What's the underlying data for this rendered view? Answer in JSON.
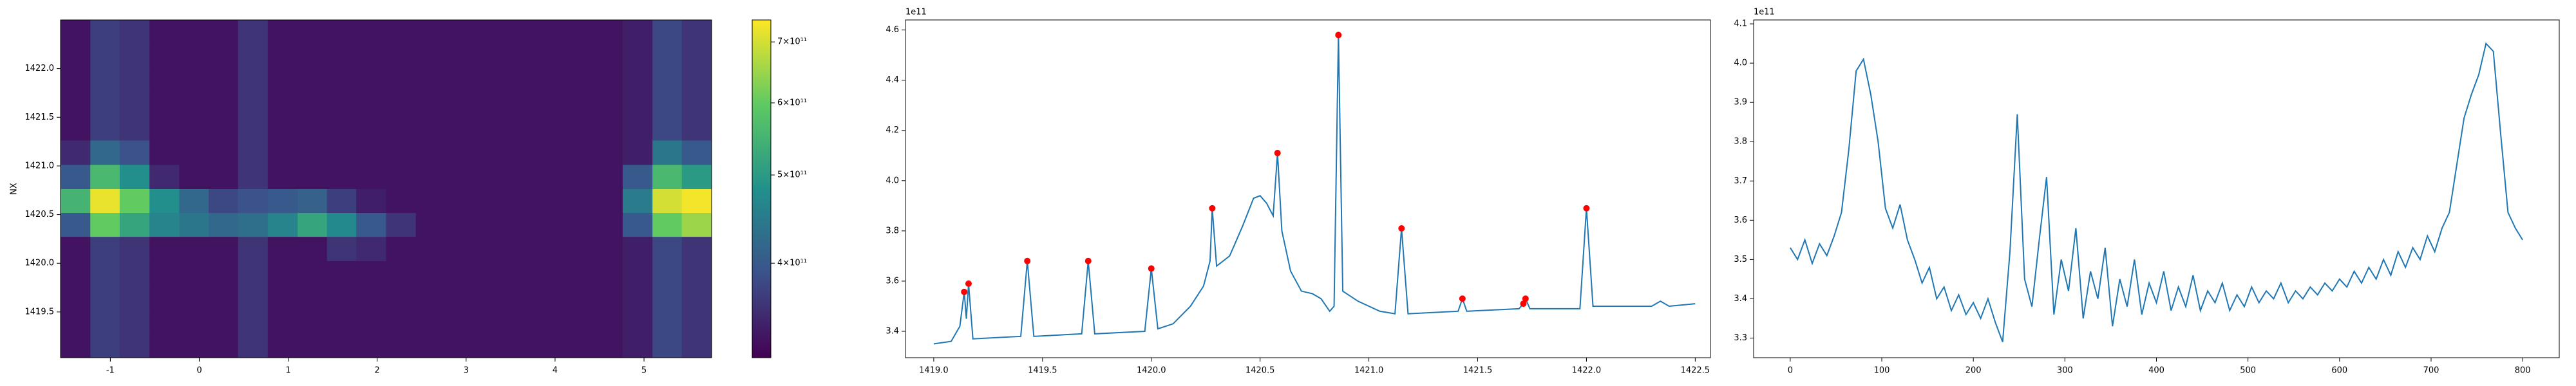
{
  "chart_data": [
    {
      "type": "heatmap",
      "ylabel": "NX",
      "colormap": "viridis",
      "color_scale": "log",
      "x": [
        -1.39,
        -1.06,
        -0.73,
        -0.39,
        -0.06,
        0.27,
        0.6,
        0.94,
        1.27,
        1.6,
        1.93,
        2.27,
        2.6,
        2.93,
        3.26,
        3.6,
        3.93,
        4.26,
        4.59,
        4.93,
        5.26,
        5.59
      ],
      "y": [
        1419.15,
        1419.4,
        1419.65,
        1419.9,
        1420.15,
        1420.4,
        1420.64,
        1420.89,
        1421.14,
        1421.39,
        1421.64,
        1421.89,
        1422.13,
        1422.38
      ],
      "values": [
        [
          330000000000.0,
          370000000000.0,
          360000000000.0,
          330000000000.0,
          330000000000.0,
          330000000000.0,
          360000000000.0,
          330000000000.0,
          330000000000.0,
          330000000000.0,
          330000000000.0,
          330000000000.0,
          330000000000.0,
          330000000000.0,
          330000000000.0,
          330000000000.0,
          330000000000.0,
          330000000000.0,
          330000000000.0,
          340000000000.0,
          380000000000.0,
          360000000000.0
        ],
        [
          330000000000.0,
          370000000000.0,
          360000000000.0,
          330000000000.0,
          330000000000.0,
          330000000000.0,
          360000000000.0,
          330000000000.0,
          330000000000.0,
          330000000000.0,
          330000000000.0,
          330000000000.0,
          330000000000.0,
          330000000000.0,
          330000000000.0,
          330000000000.0,
          330000000000.0,
          330000000000.0,
          330000000000.0,
          340000000000.0,
          380000000000.0,
          360000000000.0
        ],
        [
          330000000000.0,
          370000000000.0,
          360000000000.0,
          330000000000.0,
          330000000000.0,
          330000000000.0,
          360000000000.0,
          330000000000.0,
          330000000000.0,
          330000000000.0,
          330000000000.0,
          330000000000.0,
          330000000000.0,
          330000000000.0,
          330000000000.0,
          330000000000.0,
          330000000000.0,
          330000000000.0,
          330000000000.0,
          340000000000.0,
          380000000000.0,
          360000000000.0
        ],
        [
          330000000000.0,
          370000000000.0,
          360000000000.0,
          330000000000.0,
          330000000000.0,
          330000000000.0,
          360000000000.0,
          330000000000.0,
          330000000000.0,
          330000000000.0,
          330000000000.0,
          330000000000.0,
          330000000000.0,
          330000000000.0,
          330000000000.0,
          330000000000.0,
          330000000000.0,
          330000000000.0,
          330000000000.0,
          340000000000.0,
          380000000000.0,
          360000000000.0
        ],
        [
          330000000000.0,
          370000000000.0,
          360000000000.0,
          330000000000.0,
          330000000000.0,
          330000000000.0,
          360000000000.0,
          330000000000.0,
          330000000000.0,
          360000000000.0,
          350000000000.0,
          330000000000.0,
          330000000000.0,
          330000000000.0,
          330000000000.0,
          330000000000.0,
          330000000000.0,
          330000000000.0,
          330000000000.0,
          340000000000.0,
          380000000000.0,
          360000000000.0
        ],
        [
          400000000000.0,
          600000000000.0,
          520000000000.0,
          460000000000.0,
          440000000000.0,
          420000000000.0,
          430000000000.0,
          460000000000.0,
          520000000000.0,
          470000000000.0,
          400000000000.0,
          360000000000.0,
          330000000000.0,
          330000000000.0,
          330000000000.0,
          330000000000.0,
          330000000000.0,
          330000000000.0,
          330000000000.0,
          400000000000.0,
          600000000000.0,
          650000000000.0
        ],
        [
          550000000000.0,
          720000000000.0,
          600000000000.0,
          480000000000.0,
          420000000000.0,
          380000000000.0,
          390000000000.0,
          400000000000.0,
          410000000000.0,
          370000000000.0,
          340000000000.0,
          330000000000.0,
          330000000000.0,
          330000000000.0,
          330000000000.0,
          330000000000.0,
          330000000000.0,
          330000000000.0,
          330000000000.0,
          450000000000.0,
          700000000000.0,
          730000000000.0
        ],
        [
          400000000000.0,
          560000000000.0,
          480000000000.0,
          350000000000.0,
          330000000000.0,
          330000000000.0,
          360000000000.0,
          330000000000.0,
          330000000000.0,
          330000000000.0,
          330000000000.0,
          330000000000.0,
          330000000000.0,
          330000000000.0,
          330000000000.0,
          330000000000.0,
          330000000000.0,
          330000000000.0,
          330000000000.0,
          400000000000.0,
          560000000000.0,
          500000000000.0
        ],
        [
          350000000000.0,
          420000000000.0,
          390000000000.0,
          330000000000.0,
          330000000000.0,
          330000000000.0,
          360000000000.0,
          330000000000.0,
          330000000000.0,
          330000000000.0,
          330000000000.0,
          330000000000.0,
          330000000000.0,
          330000000000.0,
          330000000000.0,
          330000000000.0,
          330000000000.0,
          330000000000.0,
          330000000000.0,
          340000000000.0,
          440000000000.0,
          400000000000.0
        ],
        [
          330000000000.0,
          370000000000.0,
          360000000000.0,
          330000000000.0,
          330000000000.0,
          330000000000.0,
          360000000000.0,
          330000000000.0,
          330000000000.0,
          330000000000.0,
          330000000000.0,
          330000000000.0,
          330000000000.0,
          330000000000.0,
          330000000000.0,
          330000000000.0,
          330000000000.0,
          330000000000.0,
          330000000000.0,
          340000000000.0,
          380000000000.0,
          360000000000.0
        ],
        [
          330000000000.0,
          370000000000.0,
          360000000000.0,
          330000000000.0,
          330000000000.0,
          330000000000.0,
          360000000000.0,
          330000000000.0,
          330000000000.0,
          330000000000.0,
          330000000000.0,
          330000000000.0,
          330000000000.0,
          330000000000.0,
          330000000000.0,
          330000000000.0,
          330000000000.0,
          330000000000.0,
          330000000000.0,
          340000000000.0,
          380000000000.0,
          360000000000.0
        ],
        [
          330000000000.0,
          370000000000.0,
          360000000000.0,
          330000000000.0,
          330000000000.0,
          330000000000.0,
          360000000000.0,
          330000000000.0,
          330000000000.0,
          330000000000.0,
          330000000000.0,
          330000000000.0,
          330000000000.0,
          330000000000.0,
          330000000000.0,
          330000000000.0,
          330000000000.0,
          330000000000.0,
          330000000000.0,
          340000000000.0,
          380000000000.0,
          360000000000.0
        ],
        [
          330000000000.0,
          370000000000.0,
          360000000000.0,
          330000000000.0,
          330000000000.0,
          330000000000.0,
          360000000000.0,
          330000000000.0,
          330000000000.0,
          330000000000.0,
          330000000000.0,
          330000000000.0,
          330000000000.0,
          330000000000.0,
          330000000000.0,
          330000000000.0,
          330000000000.0,
          330000000000.0,
          330000000000.0,
          340000000000.0,
          380000000000.0,
          360000000000.0
        ],
        [
          330000000000.0,
          370000000000.0,
          360000000000.0,
          330000000000.0,
          330000000000.0,
          330000000000.0,
          360000000000.0,
          330000000000.0,
          330000000000.0,
          330000000000.0,
          330000000000.0,
          330000000000.0,
          330000000000.0,
          330000000000.0,
          330000000000.0,
          330000000000.0,
          330000000000.0,
          330000000000.0,
          330000000000.0,
          340000000000.0,
          380000000000.0,
          360000000000.0
        ]
      ],
      "clim": [
        315000000000.0,
        740000000000.0
      ],
      "colorbar_ticks": [
        {
          "value": 400000000000.0,
          "label": "4×10¹¹"
        },
        {
          "value": 500000000000.0,
          "label": "5×10¹¹"
        },
        {
          "value": 600000000000.0,
          "label": "6×10¹¹"
        },
        {
          "value": 700000000000.0,
          "label": "7×10¹¹"
        }
      ],
      "xlim": [
        -1.56,
        5.76
      ],
      "xticks": [
        -1,
        0,
        1,
        2,
        3,
        4,
        5
      ],
      "ylim": [
        1419.03,
        1422.5
      ],
      "yticks": [
        1419.5,
        {
          "value": 1420,
          "label": "1420.0"
        },
        1420.5,
        {
          "value": 1421,
          "label": "1421.0"
        },
        1421.5,
        {
          "value": 1422,
          "label": "1422.0"
        }
      ]
    },
    {
      "type": "line",
      "offset_label": "1e11",
      "series": [
        {
          "color": "#1f77b4",
          "x": [
            1419.0,
            1419.08,
            1419.12,
            1419.14,
            1419.15,
            1419.16,
            1419.18,
            1419.4,
            1419.43,
            1419.46,
            1419.68,
            1419.71,
            1419.74,
            1419.97,
            1420.0,
            1420.03,
            1420.1,
            1420.18,
            1420.24,
            1420.27,
            1420.28,
            1420.3,
            1420.36,
            1420.42,
            1420.47,
            1420.5,
            1420.53,
            1420.56,
            1420.58,
            1420.6,
            1420.64,
            1420.69,
            1420.74,
            1420.78,
            1420.82,
            1420.84,
            1420.86,
            1420.88,
            1420.95,
            1421.05,
            1421.12,
            1421.15,
            1421.18,
            1421.41,
            1421.43,
            1421.45,
            1421.69,
            1421.71,
            1421.72,
            1421.74,
            1421.97,
            1422.0,
            1422.03,
            1422.3,
            1422.34,
            1422.38,
            1422.5
          ],
          "values": [
            3.35,
            3.36,
            3.42,
            3.557,
            3.45,
            3.59,
            3.37,
            3.38,
            3.68,
            3.38,
            3.39,
            3.68,
            3.39,
            3.4,
            3.65,
            3.41,
            3.43,
            3.5,
            3.58,
            3.68,
            3.89,
            3.66,
            3.7,
            3.82,
            3.93,
            3.94,
            3.91,
            3.86,
            4.11,
            3.8,
            3.64,
            3.56,
            3.55,
            3.53,
            3.48,
            3.5,
            4.58,
            3.56,
            3.52,
            3.48,
            3.47,
            3.81,
            3.47,
            3.48,
            3.53,
            3.48,
            3.49,
            3.51,
            3.53,
            3.49,
            3.49,
            3.89,
            3.5,
            3.5,
            3.52,
            3.5,
            3.51
          ]
        }
      ],
      "markers": {
        "color": "#ff0000",
        "x": [
          1419.14,
          1419.16,
          1419.43,
          1419.71,
          1420.0,
          1420.28,
          1420.58,
          1420.86,
          1421.15,
          1421.43,
          1421.71,
          1421.72,
          1422.0
        ],
        "values": [
          3.557,
          3.59,
          3.68,
          3.68,
          3.65,
          3.89,
          4.11,
          4.58,
          3.81,
          3.53,
          3.51,
          3.53,
          3.89
        ]
      },
      "xlim": [
        1418.87,
        1422.57
      ],
      "xticks": [
        {
          "value": 1419,
          "label": "1419.0"
        },
        1419.5,
        {
          "value": 1420,
          "label": "1420.0"
        },
        1420.5,
        {
          "value": 1421,
          "label": "1421.0"
        },
        1421.5,
        {
          "value": 1422,
          "label": "1422.0"
        },
        1422.5
      ],
      "ylim": [
        3.295,
        4.64
      ],
      "yticks": [
        3.4,
        3.6,
        3.8,
        {
          "value": 4,
          "label": "4.0"
        },
        4.2,
        4.4,
        4.6
      ]
    },
    {
      "type": "line",
      "offset_label": "1e11",
      "series": [
        {
          "color": "#1f77b4",
          "x": [
            0,
            8,
            16,
            24,
            32,
            40,
            48,
            56,
            64,
            72,
            80,
            88,
            96,
            104,
            112,
            120,
            128,
            136,
            144,
            152,
            160,
            168,
            176,
            184,
            192,
            200,
            208,
            216,
            224,
            232,
            240,
            248,
            256,
            264,
            272,
            280,
            288,
            296,
            304,
            312,
            320,
            328,
            336,
            344,
            352,
            360,
            368,
            376,
            384,
            392,
            400,
            408,
            416,
            424,
            432,
            440,
            448,
            456,
            464,
            472,
            480,
            488,
            496,
            504,
            512,
            520,
            528,
            536,
            544,
            552,
            560,
            568,
            576,
            584,
            592,
            600,
            608,
            616,
            624,
            632,
            640,
            648,
            656,
            664,
            672,
            680,
            688,
            696,
            704,
            712,
            720,
            728,
            736,
            744,
            752,
            760,
            768,
            776,
            784,
            792,
            800
          ],
          "values": [
            3.53,
            3.5,
            3.55,
            3.49,
            3.54,
            3.51,
            3.56,
            3.62,
            3.78,
            3.98,
            4.01,
            3.92,
            3.8,
            3.63,
            3.58,
            3.64,
            3.55,
            3.5,
            3.44,
            3.48,
            3.4,
            3.43,
            3.37,
            3.41,
            3.36,
            3.39,
            3.35,
            3.4,
            3.34,
            3.29,
            3.52,
            3.87,
            3.45,
            3.38,
            3.55,
            3.71,
            3.36,
            3.5,
            3.42,
            3.58,
            3.35,
            3.47,
            3.4,
            3.53,
            3.33,
            3.45,
            3.38,
            3.5,
            3.36,
            3.44,
            3.39,
            3.47,
            3.37,
            3.43,
            3.38,
            3.46,
            3.37,
            3.42,
            3.39,
            3.44,
            3.37,
            3.41,
            3.38,
            3.43,
            3.39,
            3.42,
            3.4,
            3.44,
            3.39,
            3.42,
            3.4,
            3.43,
            3.41,
            3.44,
            3.42,
            3.45,
            3.43,
            3.47,
            3.44,
            3.48,
            3.45,
            3.5,
            3.46,
            3.52,
            3.48,
            3.53,
            3.5,
            3.56,
            3.52,
            3.58,
            3.62,
            3.74,
            3.86,
            3.92,
            3.97,
            4.05,
            4.03,
            3.82,
            3.62,
            3.58,
            3.55
          ]
        }
      ],
      "xlim": [
        -40,
        840
      ],
      "xticks": [
        0,
        100,
        200,
        300,
        400,
        500,
        600,
        700,
        800
      ],
      "ylim": [
        3.25,
        4.11
      ],
      "yticks": [
        3.3,
        3.4,
        3.5,
        3.6,
        3.7,
        3.8,
        3.9,
        {
          "value": 4,
          "label": "4.0"
        },
        4.1
      ]
    }
  ]
}
